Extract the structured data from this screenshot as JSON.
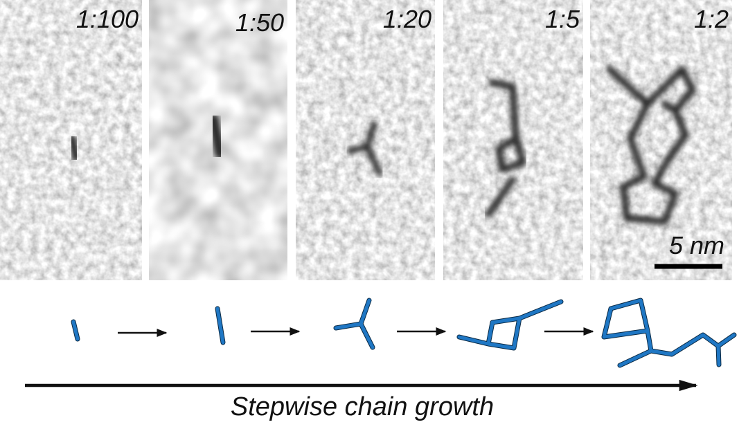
{
  "panels": [
    {
      "label": "1:100"
    },
    {
      "label": "1:50"
    },
    {
      "label": "1:20"
    },
    {
      "label": "1:5"
    },
    {
      "label": "1:2"
    }
  ],
  "scale_bar": "5 nm",
  "caption": "Stepwise chain growth"
}
